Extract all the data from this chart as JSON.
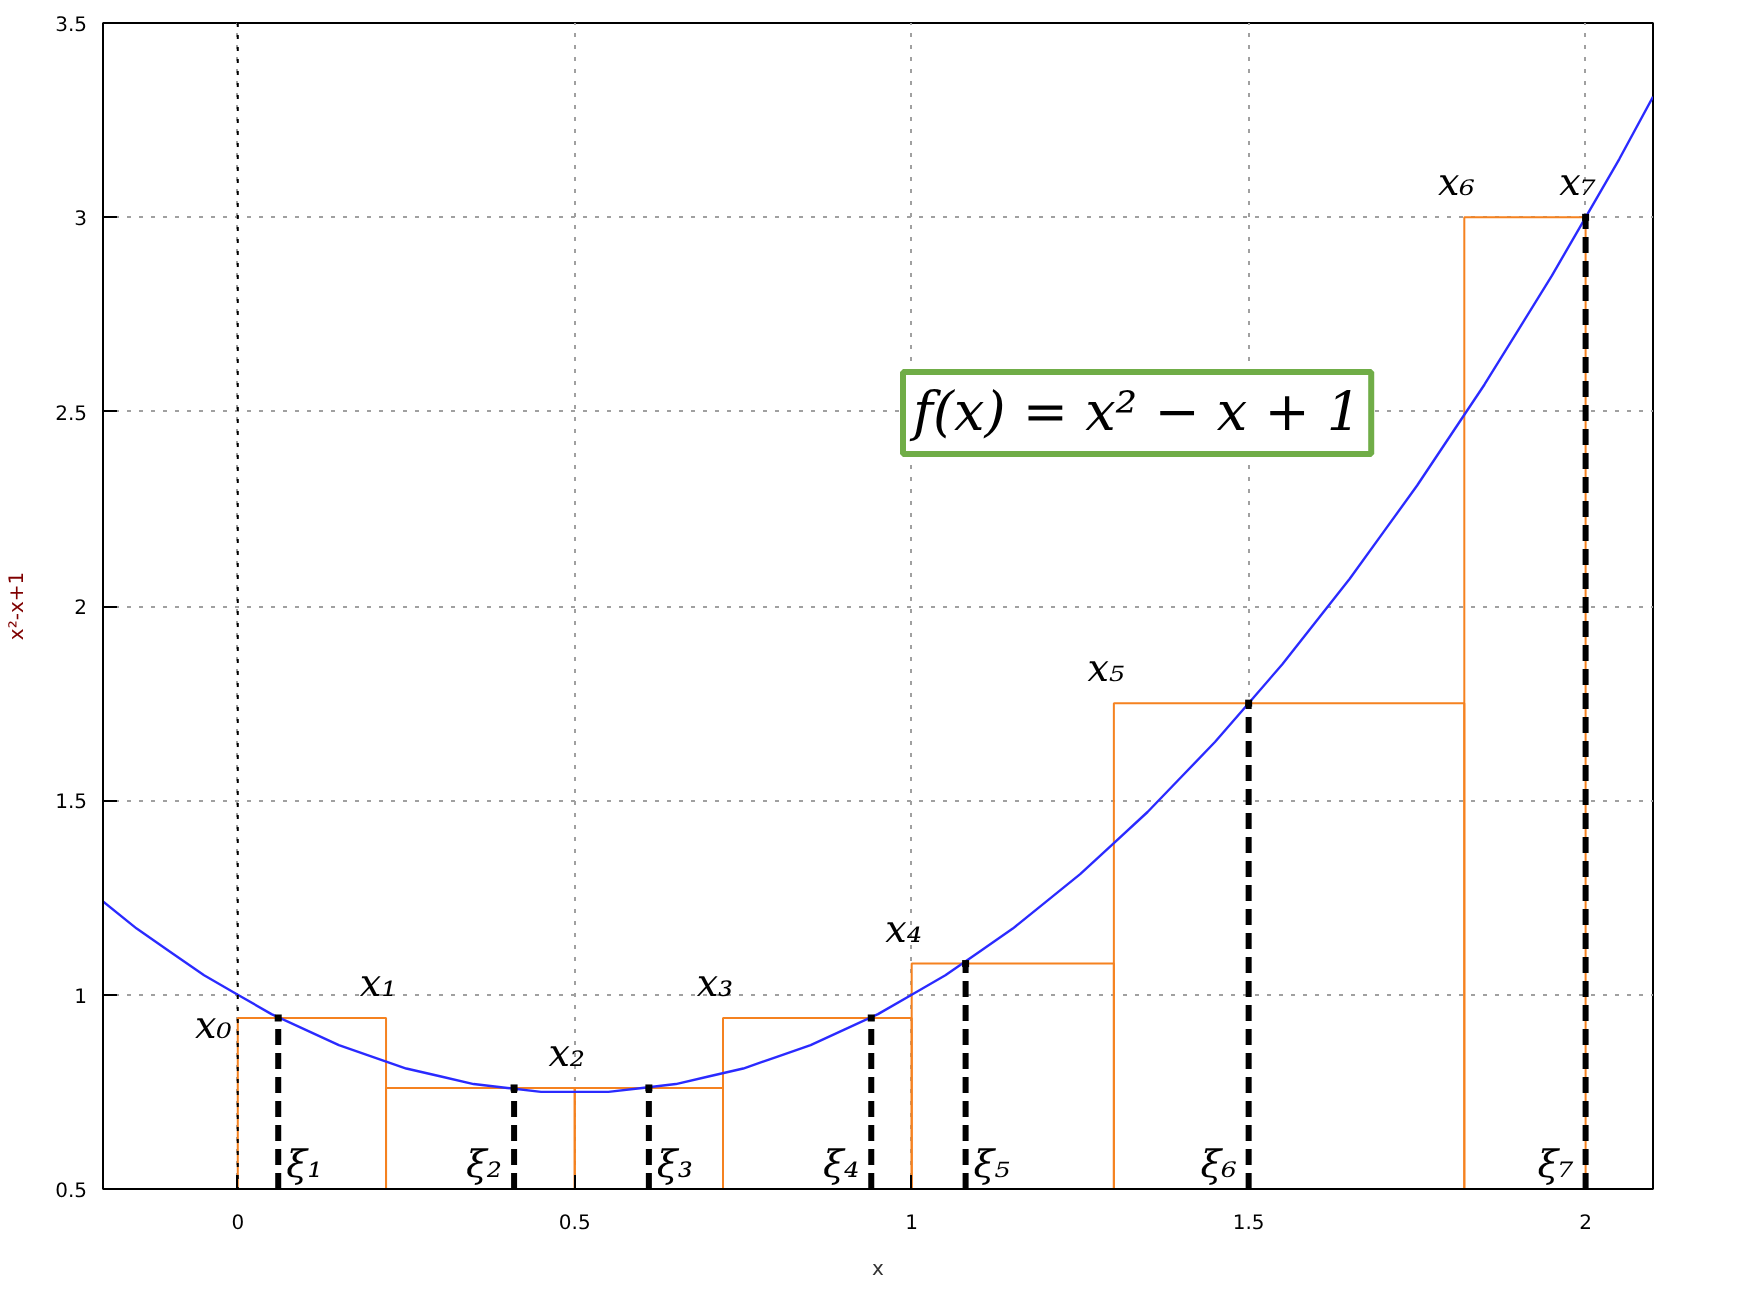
{
  "chart_data": {
    "type": "histogram",
    "xlabel": "x",
    "ylabel": "x²-x+1",
    "bins": [
      0,
      0.22,
      0.5,
      0.72,
      1.0,
      1.3,
      1.82,
      2.0
    ],
    "values": [
      0.94,
      0.76,
      0.76,
      0.94,
      1.08,
      1.75,
      3.0
    ],
    "color": "#f58220",
    "series": [
      {
        "type": "line",
        "color": "#2a2aff",
        "x": [
          -0.2,
          -0.15,
          -0.1,
          -0.05,
          0,
          0.05,
          0.1,
          0.15,
          0.2,
          0.25,
          0.3,
          0.35,
          0.4,
          0.45,
          0.5,
          0.55,
          0.6,
          0.65,
          0.7,
          0.75,
          0.8,
          0.85,
          0.9,
          0.95,
          1.0,
          1.05,
          1.1,
          1.15,
          1.2,
          1.25,
          1.3,
          1.35,
          1.4,
          1.45,
          1.5,
          1.55,
          1.6,
          1.65,
          1.7,
          1.75,
          1.8,
          1.85,
          1.9,
          1.95,
          2.0,
          2.05,
          2.1
        ],
        "values": [
          1.24,
          1.17,
          1.11,
          1.05,
          1,
          0.95,
          0.91,
          0.87,
          0.84,
          0.81,
          0.79,
          0.77,
          0.76,
          0.75,
          0.75,
          0.75,
          0.76,
          0.77,
          0.79,
          0.81,
          0.84,
          0.87,
          0.91,
          0.95,
          1,
          1.05,
          1.11,
          1.17,
          1.24,
          1.31,
          1.39,
          1.47,
          1.56,
          1.65,
          1.75,
          1.85,
          1.96,
          2.07,
          2.19,
          2.31,
          2.44,
          2.57,
          2.71,
          2.85,
          3,
          3.15,
          3.31
        ]
      },
      {
        "type": "lollipop",
        "color": "#000000",
        "line_style": "dashed",
        "marker": "square",
        "x": [
          0.06,
          0.41,
          0.61,
          0.94,
          1.08,
          1.5,
          2.0
        ],
        "values": [
          0.94,
          0.76,
          0.76,
          0.94,
          1.08,
          1.75,
          3.0
        ]
      }
    ],
    "xlim": [
      -0.2,
      2.1
    ],
    "ylim": [
      0.5,
      3.5
    ],
    "xticks": [
      0,
      0.5,
      1,
      1.5,
      2
    ],
    "yticks": [
      0.5,
      1,
      1.5,
      2,
      2.5,
      3,
      3.5
    ],
    "grid": true,
    "ref_lines": [
      {
        "axis": "x",
        "value": 0,
        "line_style": "dotted",
        "color": "#000000"
      }
    ],
    "annotations": [
      "f(x) = x² − x + 1",
      "x₀",
      "x₁",
      "x₂",
      "x₃",
      "x₄",
      "x₅",
      "x₆",
      "x₇",
      "ξ₁",
      "ξ₂",
      "ξ₃",
      "ξ₄",
      "ξ₅",
      "ξ₆",
      "ξ₇"
    ]
  }
}
